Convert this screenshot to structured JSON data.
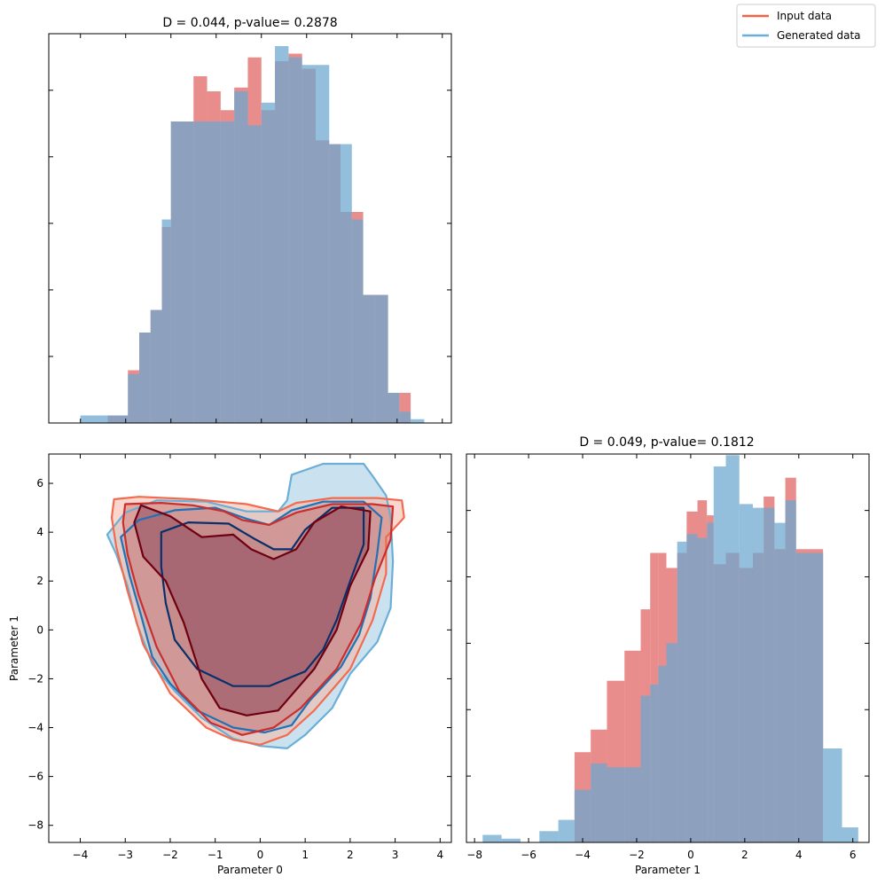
{
  "colors": {
    "input": "#e06666",
    "generated": "#6fa8d0",
    "input_line": "#ef6548",
    "generated_line": "#6baed6",
    "overlap": "#85849f"
  },
  "legend": {
    "items": [
      "Input data",
      "Generated data"
    ],
    "location": "upper-right"
  },
  "chart_data": [
    {
      "type": "bar",
      "subtype": "histogram",
      "title": "D = 0.044, p-value= 0.2878",
      "xlim": [
        -4.7,
        4.2
      ],
      "x_ticks_labeled": false,
      "y_ticks_labeled": false,
      "bin_edges": [
        -4.0,
        -3.4,
        -2.95,
        -2.7,
        -2.45,
        -2.2,
        -2.0,
        -1.75,
        -1.5,
        -1.2,
        -0.9,
        -0.6,
        -0.3,
        0.0,
        0.3,
        0.6,
        0.9,
        1.2,
        1.5,
        1.75,
        2.0,
        2.25,
        2.5,
        2.8,
        3.05,
        3.3,
        3.6
      ],
      "series": [
        {
          "name": "Input data",
          "heights": [
            0,
            0.02,
            0.14,
            0.24,
            0.3,
            0.52,
            0.8,
            0.8,
            0.92,
            0.88,
            0.83,
            0.89,
            0.97,
            0.83,
            0.96,
            0.98,
            0.94,
            0.75,
            0.74,
            0.56,
            0.56,
            0.34,
            0.34,
            0.08,
            0.08,
            0
          ]
        },
        {
          "name": "Generated data",
          "heights": [
            0.02,
            0.02,
            0.13,
            0.24,
            0.3,
            0.54,
            0.8,
            0.8,
            0.8,
            0.8,
            0.8,
            0.88,
            0.79,
            0.85,
            1.0,
            0.97,
            0.95,
            0.95,
            0.74,
            0.74,
            0.54,
            0.34,
            0.34,
            0.08,
            0.03,
            0.01
          ]
        }
      ]
    },
    {
      "type": "contour",
      "xlabel": "Parameter 0",
      "ylabel": "Parameter 1",
      "xlim": [
        -4.7,
        4.25
      ],
      "ylim": [
        -8.7,
        7.2
      ],
      "x_ticks": [
        -4,
        -3,
        -2,
        -1,
        0,
        1,
        2,
        3,
        4
      ],
      "y_ticks": [
        -8,
        -6,
        -4,
        -2,
        0,
        2,
        4,
        6
      ],
      "series": [
        {
          "name": "Input data",
          "levels": [
            [
              [
                -3.25,
                5.35
              ],
              [
                -2.7,
                5.45
              ],
              [
                -1.5,
                5.35
              ],
              [
                -0.3,
                5.15
              ],
              [
                0.4,
                4.85
              ],
              [
                0.8,
                5.2
              ],
              [
                1.6,
                5.4
              ],
              [
                2.6,
                5.4
              ],
              [
                3.15,
                5.3
              ],
              [
                3.2,
                4.6
              ],
              [
                2.8,
                3.8
              ],
              [
                2.8,
                2.3
              ],
              [
                2.5,
                0.4
              ],
              [
                2.0,
                -1.6
              ],
              [
                1.2,
                -3.3
              ],
              [
                0.6,
                -4.3
              ],
              [
                0.0,
                -4.7
              ],
              [
                -0.6,
                -4.5
              ],
              [
                -1.2,
                -4.0
              ],
              [
                -2.0,
                -2.6
              ],
              [
                -2.6,
                -0.6
              ],
              [
                -2.95,
                1.6
              ],
              [
                -3.2,
                3.4
              ],
              [
                -3.3,
                4.6
              ]
            ],
            [
              [
                -3.0,
                5.15
              ],
              [
                -2.2,
                5.2
              ],
              [
                -1.5,
                5.1
              ],
              [
                -0.8,
                4.85
              ],
              [
                -0.4,
                4.5
              ],
              [
                0.2,
                4.3
              ],
              [
                0.8,
                4.8
              ],
              [
                1.6,
                5.15
              ],
              [
                2.5,
                5.15
              ],
              [
                2.95,
                5.05
              ],
              [
                2.9,
                3.7
              ],
              [
                2.55,
                2.1
              ],
              [
                2.25,
                0.3
              ],
              [
                1.7,
                -1.6
              ],
              [
                0.9,
                -3.2
              ],
              [
                0.3,
                -4.0
              ],
              [
                -0.4,
                -4.3
              ],
              [
                -1.1,
                -3.8
              ],
              [
                -1.8,
                -2.5
              ],
              [
                -2.3,
                -0.7
              ],
              [
                -2.7,
                1.4
              ],
              [
                -2.95,
                3.1
              ],
              [
                -3.05,
                4.4
              ]
            ],
            [
              [
                -2.65,
                5.1
              ],
              [
                -2.0,
                4.65
              ],
              [
                -1.3,
                3.8
              ],
              [
                -0.6,
                3.9
              ],
              [
                -0.2,
                3.3
              ],
              [
                0.3,
                2.9
              ],
              [
                0.8,
                3.3
              ],
              [
                1.2,
                4.4
              ],
              [
                1.8,
                5.05
              ],
              [
                2.45,
                4.85
              ],
              [
                2.4,
                3.3
              ],
              [
                2.0,
                1.8
              ],
              [
                1.7,
                0.0
              ],
              [
                1.2,
                -1.6
              ],
              [
                0.4,
                -3.3
              ],
              [
                -0.3,
                -3.5
              ],
              [
                -0.9,
                -3.2
              ],
              [
                -1.3,
                -2.0
              ],
              [
                -1.7,
                0.3
              ],
              [
                -2.1,
                2.0
              ],
              [
                -2.6,
                3.0
              ],
              [
                -2.8,
                4.4
              ]
            ]
          ]
        },
        {
          "name": "Generated data",
          "levels": [
            [
              [
                -3.4,
                3.9
              ],
              [
                -3.0,
                4.8
              ],
              [
                -2.3,
                5.3
              ],
              [
                -1.2,
                5.25
              ],
              [
                -0.3,
                4.85
              ],
              [
                0.4,
                4.85
              ],
              [
                0.6,
                5.3
              ],
              [
                0.7,
                6.35
              ],
              [
                1.4,
                6.8
              ],
              [
                2.3,
                6.8
              ],
              [
                2.5,
                6.3
              ],
              [
                2.8,
                5.5
              ],
              [
                2.9,
                4.6
              ],
              [
                2.95,
                2.8
              ],
              [
                2.9,
                0.9
              ],
              [
                2.6,
                -0.5
              ],
              [
                2.0,
                -1.8
              ],
              [
                1.6,
                -3.2
              ],
              [
                1.0,
                -4.3
              ],
              [
                0.6,
                -4.85
              ],
              [
                0.0,
                -4.75
              ],
              [
                -0.6,
                -4.45
              ],
              [
                -1.3,
                -3.6
              ],
              [
                -1.9,
                -2.5
              ],
              [
                -2.4,
                -1.4
              ],
              [
                -2.75,
                0.3
              ],
              [
                -2.95,
                1.8
              ],
              [
                -3.2,
                3.1
              ]
            ],
            [
              [
                -3.1,
                3.8
              ],
              [
                -2.7,
                4.5
              ],
              [
                -1.9,
                4.9
              ],
              [
                -1.0,
                5.0
              ],
              [
                -0.3,
                4.55
              ],
              [
                0.2,
                4.3
              ],
              [
                0.7,
                4.9
              ],
              [
                1.4,
                5.25
              ],
              [
                2.3,
                5.25
              ],
              [
                2.7,
                4.6
              ],
              [
                2.6,
                3.1
              ],
              [
                2.45,
                1.3
              ],
              [
                2.2,
                -0.2
              ],
              [
                1.8,
                -1.5
              ],
              [
                1.1,
                -2.9
              ],
              [
                0.7,
                -3.9
              ],
              [
                0.1,
                -4.2
              ],
              [
                -0.6,
                -4.0
              ],
              [
                -1.4,
                -3.3
              ],
              [
                -2.0,
                -2.2
              ],
              [
                -2.4,
                -1.1
              ],
              [
                -2.65,
                0.6
              ],
              [
                -2.9,
                2.2
              ]
            ],
            [
              [
                -2.2,
                4.0
              ],
              [
                -1.6,
                4.4
              ],
              [
                -0.7,
                4.35
              ],
              [
                -0.1,
                3.7
              ],
              [
                0.3,
                3.3
              ],
              [
                0.7,
                3.3
              ],
              [
                1.0,
                4.1
              ],
              [
                1.6,
                5.0
              ],
              [
                2.3,
                5.0
              ],
              [
                2.3,
                3.5
              ],
              [
                2.0,
                2.0
              ],
              [
                1.7,
                0.4
              ],
              [
                1.4,
                -0.8
              ],
              [
                1.0,
                -1.7
              ],
              [
                0.2,
                -2.3
              ],
              [
                -0.6,
                -2.3
              ],
              [
                -1.4,
                -1.6
              ],
              [
                -1.9,
                -0.4
              ],
              [
                -2.1,
                1.1
              ],
              [
                -2.2,
                2.6
              ]
            ]
          ]
        }
      ]
    },
    {
      "type": "bar",
      "subtype": "histogram",
      "title": "D = 0.049, p-value= 0.1812",
      "xlabel": "Parameter 1",
      "xlim": [
        -8.3,
        6.6
      ],
      "x_ticks": [
        -8,
        -6,
        -4,
        -2,
        0,
        2,
        4,
        6
      ],
      "y_ticks_labeled": false,
      "bin_edges": [
        -7.7,
        -7.0,
        -6.3,
        -5.6,
        -4.9,
        -4.3,
        -3.7,
        -3.1,
        -2.45,
        -1.85,
        -1.5,
        -1.2,
        -0.9,
        -0.5,
        -0.15,
        0.25,
        0.6,
        0.85,
        1.3,
        1.8,
        2.3,
        2.7,
        3.1,
        3.5,
        3.9,
        4.35,
        4.9,
        5.6,
        6.2
      ],
      "series": [
        {
          "name": "Input data",
          "heights": [
            0,
            0,
            0,
            0,
            0,
            0.24,
            0.3,
            0.43,
            0.51,
            0.62,
            0.77,
            0.77,
            0.73,
            0.77,
            0.88,
            0.91,
            0.87,
            0.74,
            0.77,
            0.73,
            0.77,
            0.92,
            0.78,
            0.97,
            0.78,
            0.78,
            0,
            0
          ]
        },
        {
          "name": "Generated data",
          "heights": [
            0.02,
            0.01,
            0.0,
            0.03,
            0.06,
            0.14,
            0.21,
            0.2,
            0.2,
            0.39,
            0.42,
            0.47,
            0.53,
            0.8,
            0.82,
            0.81,
            0.85,
            1.0,
            1.03,
            0.9,
            0.89,
            0.89,
            0.85,
            0.91,
            0.77,
            0.77,
            0.25,
            0.04
          ]
        }
      ]
    }
  ]
}
